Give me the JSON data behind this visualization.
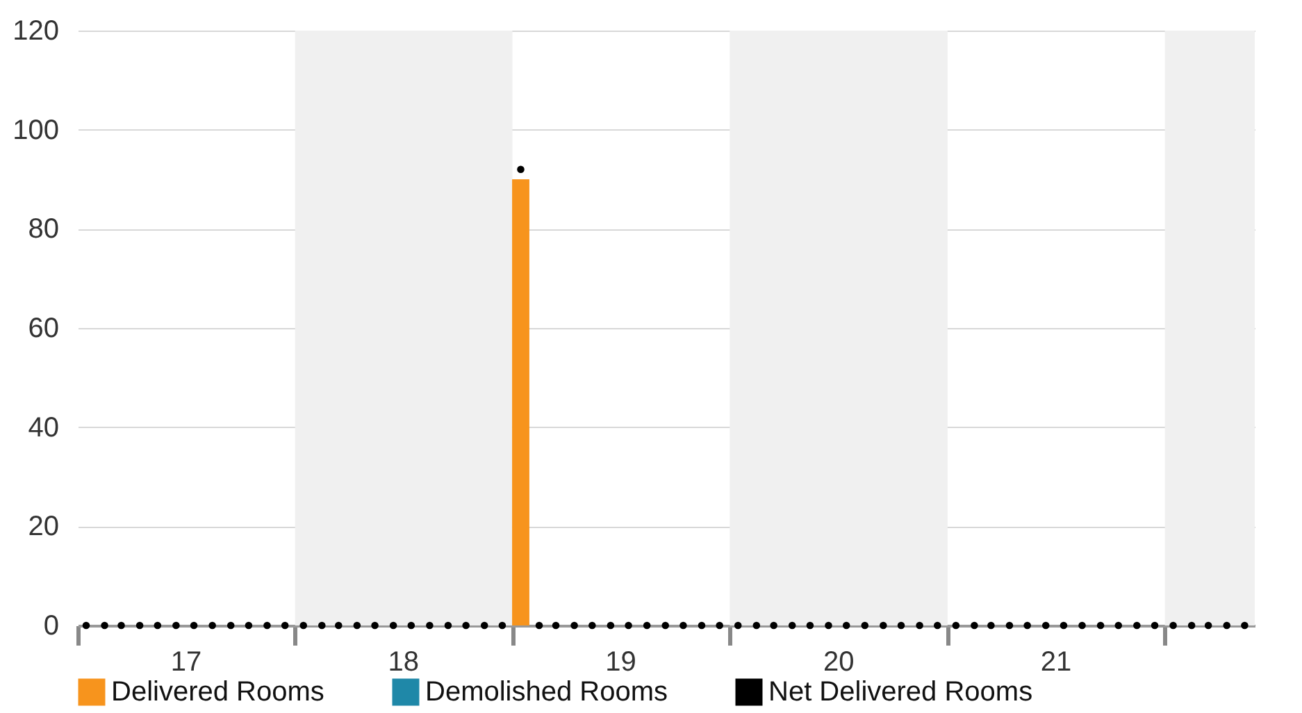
{
  "chart_data": {
    "type": "bar",
    "x": [
      "2017-01-15",
      "2017-02-15",
      "2017-03-15",
      "2017-04-15",
      "2017-05-15",
      "2017-06-15",
      "2017-07-15",
      "2017-08-15",
      "2017-09-15",
      "2017-10-15",
      "2017-11-15",
      "2017-12-15",
      "2018-01-15",
      "2018-02-15",
      "2018-03-15",
      "2018-04-15",
      "2018-05-15",
      "2018-06-15",
      "2018-07-15",
      "2018-08-15",
      "2018-09-15",
      "2018-10-15",
      "2018-11-15",
      "2018-12-15",
      "2019-01-15",
      "2019-02-15",
      "2019-03-15",
      "2019-04-15",
      "2019-05-15",
      "2019-06-15",
      "2019-07-15",
      "2019-08-15",
      "2019-09-15",
      "2019-10-15",
      "2019-11-15",
      "2019-12-15",
      "2020-01-15",
      "2020-02-15",
      "2020-03-15",
      "2020-04-15",
      "2020-05-15",
      "2020-06-15",
      "2020-07-15",
      "2020-08-15",
      "2020-09-15",
      "2020-10-15",
      "2020-11-15",
      "2020-12-15",
      "2021-01-15",
      "2021-02-15",
      "2021-03-15",
      "2021-04-15",
      "2021-05-15",
      "2021-06-15",
      "2021-07-15",
      "2021-08-15",
      "2021-09-15",
      "2021-10-15",
      "2021-11-15",
      "2021-12-15",
      "2022-01-15",
      "2022-02-15",
      "2022-03-15",
      "2022-04-15",
      "2022-05-15"
    ],
    "series": [
      {
        "name": "Delivered Rooms",
        "color": "#f7941d",
        "values": [
          0,
          0,
          0,
          0,
          0,
          0,
          0,
          0,
          0,
          0,
          0,
          0,
          0,
          0,
          0,
          0,
          0,
          0,
          0,
          0,
          0,
          0,
          0,
          0,
          90,
          0,
          0,
          0,
          0,
          0,
          0,
          0,
          0,
          0,
          0,
          0,
          0,
          0,
          0,
          0,
          0,
          0,
          0,
          0,
          0,
          0,
          0,
          0,
          0,
          0,
          0,
          0,
          0,
          0,
          0,
          0,
          0,
          0,
          0,
          0,
          0,
          0,
          0,
          0,
          0
        ]
      },
      {
        "name": "Demolished Rooms",
        "color": "#1f88a8",
        "values": [
          0,
          0,
          0,
          0,
          0,
          0,
          0,
          0,
          0,
          0,
          0,
          0,
          0,
          0,
          0,
          0,
          0,
          0,
          0,
          0,
          0,
          0,
          0,
          0,
          0,
          0,
          0,
          0,
          0,
          0,
          0,
          0,
          0,
          0,
          0,
          0,
          0,
          0,
          0,
          0,
          0,
          0,
          0,
          0,
          0,
          0,
          0,
          0,
          0,
          0,
          0,
          0,
          0,
          0,
          0,
          0,
          0,
          0,
          0,
          0,
          0,
          0,
          0,
          0,
          0
        ]
      },
      {
        "name": "Net Delivered Rooms",
        "type": "scatter",
        "marker": "circle",
        "color": "#000000",
        "values": [
          0,
          0,
          0,
          0,
          0,
          0,
          0,
          0,
          0,
          0,
          0,
          0,
          0,
          0,
          0,
          0,
          0,
          0,
          0,
          0,
          0,
          0,
          0,
          0,
          92,
          0,
          0,
          0,
          0,
          0,
          0,
          0,
          0,
          0,
          0,
          0,
          0,
          0,
          0,
          0,
          0,
          0,
          0,
          0,
          0,
          0,
          0,
          0,
          0,
          0,
          0,
          0,
          0,
          0,
          0,
          0,
          0,
          0,
          0,
          0,
          0,
          0,
          0,
          0,
          0
        ]
      }
    ],
    "xlim": [
      "2017-01",
      "2022-06"
    ],
    "xticks": [
      {
        "value": "2017-01",
        "label": null
      },
      {
        "value": "2017-07",
        "label": "17"
      },
      {
        "value": "2018-01",
        "label": null
      },
      {
        "value": "2018-07",
        "label": "18"
      },
      {
        "value": "2019-01",
        "label": null
      },
      {
        "value": "2019-07",
        "label": "19"
      },
      {
        "value": "2020-01",
        "label": null
      },
      {
        "value": "2020-07",
        "label": "20"
      },
      {
        "value": "2021-01",
        "label": null
      },
      {
        "value": "2021-07",
        "label": "21"
      },
      {
        "value": "2022-01",
        "label": null
      }
    ],
    "ylim": [
      0,
      120
    ],
    "yticks": [
      0,
      20,
      40,
      60,
      80,
      100,
      120
    ],
    "bands": [
      {
        "axis": "x",
        "from": "2018-01",
        "to": "2019-01",
        "color": "#f0f0f0"
      },
      {
        "axis": "x",
        "from": "2020-01",
        "to": "2021-01",
        "color": "#f0f0f0"
      },
      {
        "axis": "x",
        "from": "2022-01",
        "to": "2022-06",
        "color": "#f0f0f0"
      }
    ],
    "grid": "y",
    "legend": "bottom"
  }
}
